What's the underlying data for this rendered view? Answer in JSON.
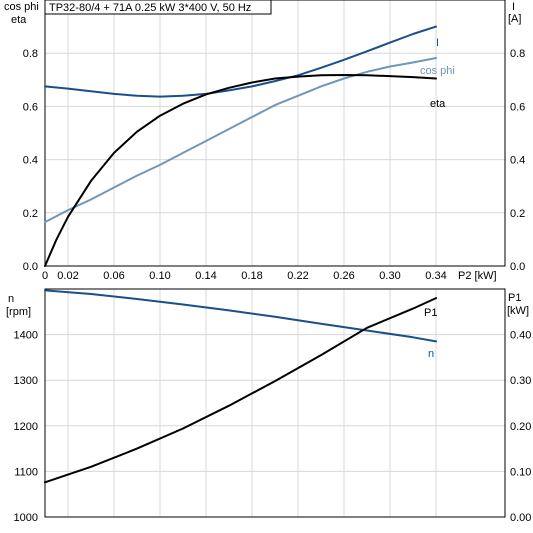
{
  "title": "TP32-80/4 + 71A   0.25 kW   3*400 V, 50 Hz",
  "colors": {
    "eta": "#000000",
    "I": "#1a4f8a",
    "cos_phi": "#7096b8",
    "n": "#1a4f8a",
    "P1": "#000000"
  },
  "chart_data": [
    {
      "type": "line",
      "x_unit_label": "P2 [kW]",
      "x_ticks": [
        0,
        0.02,
        0.06,
        0.1,
        0.14,
        0.18,
        0.22,
        0.26,
        0.3,
        0.34
      ],
      "xlim": [
        0,
        0.4
      ],
      "left_axis": {
        "label_line1": "cos phi",
        "label_line2": "eta",
        "ticks": [
          0.0,
          0.2,
          0.4,
          0.6,
          0.8
        ],
        "ylim": [
          0,
          1.0
        ]
      },
      "right_axis": {
        "label_line1": "I",
        "label_line2": "[A]",
        "ticks": [
          0.0,
          0.2,
          0.4,
          0.6,
          0.8
        ],
        "ylim": [
          0,
          1.0
        ]
      },
      "grid": true,
      "series": [
        {
          "key": "I",
          "name": "I",
          "axis": "right",
          "x": [
            0,
            0.02,
            0.04,
            0.06,
            0.08,
            0.1,
            0.12,
            0.14,
            0.16,
            0.18,
            0.2,
            0.22,
            0.24,
            0.26,
            0.28,
            0.3,
            0.32,
            0.34
          ],
          "y": [
            0.675,
            0.667,
            0.657,
            0.647,
            0.64,
            0.637,
            0.64,
            0.647,
            0.66,
            0.675,
            0.695,
            0.717,
            0.745,
            0.775,
            0.807,
            0.84,
            0.872,
            0.9
          ]
        },
        {
          "key": "cos_phi",
          "name": "cos phi",
          "axis": "left",
          "x": [
            0,
            0.02,
            0.04,
            0.06,
            0.08,
            0.1,
            0.12,
            0.14,
            0.16,
            0.18,
            0.2,
            0.22,
            0.24,
            0.26,
            0.28,
            0.3,
            0.32,
            0.34
          ],
          "y": [
            0.165,
            0.21,
            0.25,
            0.295,
            0.34,
            0.38,
            0.425,
            0.47,
            0.515,
            0.56,
            0.605,
            0.64,
            0.675,
            0.705,
            0.73,
            0.75,
            0.765,
            0.782
          ]
        },
        {
          "key": "eta",
          "name": "eta",
          "axis": "left",
          "x": [
            0,
            0.01,
            0.02,
            0.04,
            0.06,
            0.08,
            0.1,
            0.12,
            0.14,
            0.16,
            0.18,
            0.2,
            0.22,
            0.24,
            0.26,
            0.28,
            0.3,
            0.32,
            0.34
          ],
          "y": [
            0.0,
            0.1,
            0.185,
            0.32,
            0.425,
            0.505,
            0.565,
            0.61,
            0.645,
            0.67,
            0.69,
            0.705,
            0.712,
            0.717,
            0.718,
            0.717,
            0.714,
            0.71,
            0.705
          ]
        }
      ]
    },
    {
      "type": "line",
      "left_axis": {
        "label_line1": "n",
        "label_line2": "[rpm]",
        "ticks": [
          1000,
          1100,
          1200,
          1300,
          1400
        ],
        "ylim": [
          1000,
          1500
        ]
      },
      "right_axis": {
        "label_line1": "P1",
        "label_line2": "[kW]",
        "ticks": [
          "0.00",
          "0.10",
          "0.20",
          "0.30",
          "0.40"
        ],
        "ylim": [
          0,
          0.5
        ]
      },
      "xlim": [
        0,
        0.4
      ],
      "grid": true,
      "series": [
        {
          "key": "n",
          "name": "n",
          "axis": "left",
          "x": [
            0,
            0.04,
            0.08,
            0.12,
            0.16,
            0.2,
            0.24,
            0.28,
            0.32,
            0.34
          ],
          "y": [
            1497,
            1489,
            1478,
            1466,
            1453,
            1439,
            1424,
            1409,
            1394,
            1385
          ]
        },
        {
          "key": "P1",
          "name": "P1",
          "axis": "right",
          "x": [
            0,
            0.04,
            0.08,
            0.12,
            0.16,
            0.2,
            0.24,
            0.28,
            0.32,
            0.34
          ],
          "y": [
            0.076,
            0.11,
            0.15,
            0.194,
            0.244,
            0.298,
            0.355,
            0.415,
            0.457,
            0.48
          ]
        }
      ]
    }
  ]
}
